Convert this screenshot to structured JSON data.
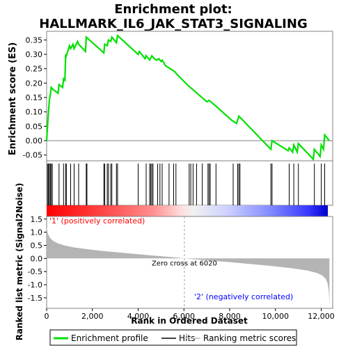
{
  "chart_data": {
    "type": "line",
    "title_line1": "Enrichment plot:",
    "title_line2": "HALLMARK_IL6_JAK_STAT3_SIGNALING",
    "xlabel": "Rank in Ordered Dataset",
    "xlim": [
      0,
      12500
    ],
    "x_ticks": [
      0,
      2000,
      4000,
      6000,
      8000,
      10000,
      12000
    ],
    "x_tick_labels": [
      "0",
      "2,000",
      "4,000",
      "6,000",
      "8,000",
      "10,000",
      "12,000"
    ],
    "top_panel": {
      "ylabel": "Enrichment score (ES)",
      "ylim": [
        -0.07,
        0.38
      ],
      "y_ticks": [
        -0.05,
        0.0,
        0.05,
        0.1,
        0.15,
        0.2,
        0.25,
        0.3,
        0.35
      ],
      "y_tick_labels": [
        "-0.05",
        "0.00",
        "0.05",
        "0.10",
        "0.15",
        "0.20",
        "0.25",
        "0.30",
        "0.35"
      ],
      "series": [
        {
          "name": "Enrichment profile",
          "color": "#00e000",
          "x": [
            0,
            40,
            80,
            120,
            160,
            200,
            250,
            500,
            540,
            700,
            740,
            800,
            830,
            860,
            1000,
            1050,
            1150,
            1200,
            1350,
            1400,
            1700,
            1730,
            2500,
            2540,
            2650,
            2700,
            2800,
            2850,
            3050,
            3100,
            4000,
            4050,
            4300,
            4350,
            4500,
            4600,
            4700,
            4800,
            4900,
            5000,
            5050,
            5200,
            5400,
            5600,
            5700,
            6200,
            6500,
            7000,
            7100,
            7400,
            8100,
            8300,
            8400,
            9800,
            9850,
            10550,
            10600,
            10750,
            10800,
            10950,
            11000,
            11650,
            11700,
            11950,
            12000,
            12100,
            12150,
            12250,
            12350
          ],
          "y": [
            0.0,
            0.05,
            0.1,
            0.14,
            0.16,
            0.185,
            0.18,
            0.165,
            0.195,
            0.185,
            0.215,
            0.21,
            0.3,
            0.295,
            0.33,
            0.32,
            0.335,
            0.32,
            0.345,
            0.335,
            0.31,
            0.36,
            0.305,
            0.335,
            0.33,
            0.35,
            0.345,
            0.36,
            0.34,
            0.365,
            0.3,
            0.31,
            0.285,
            0.295,
            0.28,
            0.295,
            0.285,
            0.28,
            0.285,
            0.275,
            0.28,
            0.26,
            0.25,
            0.24,
            0.23,
            0.19,
            0.17,
            0.135,
            0.14,
            0.12,
            0.07,
            0.06,
            0.085,
            -0.03,
            0.0,
            -0.035,
            -0.025,
            -0.04,
            -0.015,
            -0.04,
            -0.01,
            -0.065,
            -0.03,
            -0.055,
            -0.015,
            -0.03,
            0.02,
            0.01,
            0.0
          ]
        }
      ]
    },
    "hits": [
      40,
      80,
      120,
      160,
      200,
      250,
      540,
      740,
      830,
      860,
      1050,
      1200,
      1400,
      1730,
      1760,
      2500,
      2540,
      2650,
      2700,
      2800,
      2850,
      3050,
      3100,
      4000,
      4350,
      4500,
      4550,
      4600,
      4650,
      4850,
      4950,
      5050,
      5350,
      5550,
      5650,
      6230,
      6300,
      6400,
      6550,
      6800,
      7050,
      7100,
      7150,
      7400,
      8150,
      8350,
      8400,
      8450,
      9800,
      9850,
      10600,
      10800,
      11000,
      11700,
      12000,
      12150
    ],
    "hits_legend": "Hits",
    "ranking_panel": {
      "ylabel": "Ranked list metric (Signal2Noise)",
      "ylim": [
        -1.9,
        1.6
      ],
      "y_ticks": [
        -1.5,
        -1.0,
        -0.5,
        0.0,
        0.5,
        1.0,
        1.5
      ],
      "y_tick_labels": [
        "-1.5",
        "-1.0",
        "-0.5",
        "0.0",
        "0.5",
        "1.0",
        "1.5"
      ],
      "fill_color": "#b4b4b4",
      "x": [
        0,
        50,
        150,
        300,
        500,
        800,
        1200,
        1800,
        2500,
        3500,
        4500,
        5500,
        6020,
        7000,
        8000,
        9000,
        10000,
        10800,
        11400,
        11800,
        12050,
        12200,
        12280,
        12330,
        12358
      ],
      "y": [
        1.2,
        0.95,
        0.78,
        0.66,
        0.57,
        0.49,
        0.42,
        0.35,
        0.28,
        0.2,
        0.12,
        0.05,
        0.0,
        -0.07,
        -0.14,
        -0.22,
        -0.3,
        -0.38,
        -0.46,
        -0.55,
        -0.65,
        -0.78,
        -0.95,
        -1.25,
        -1.75
      ],
      "zero_cross_label": "Zero cross at 6020",
      "zero_cross_x": 6020,
      "positive_label": "'1' (positively correlated)",
      "negative_label": "'2' (negatively correlated)",
      "legend_item": "Ranking metric scores"
    },
    "color_bar": {
      "positive_color": "#ff0000",
      "neutral_color": "#f0f0f0",
      "negative_color": "#0000ff"
    },
    "n_genes": 12358,
    "grid": false,
    "legend": {
      "placement": "bottom",
      "items": [
        "Enrichment profile",
        "Hits",
        "Ranking metric scores"
      ]
    }
  }
}
